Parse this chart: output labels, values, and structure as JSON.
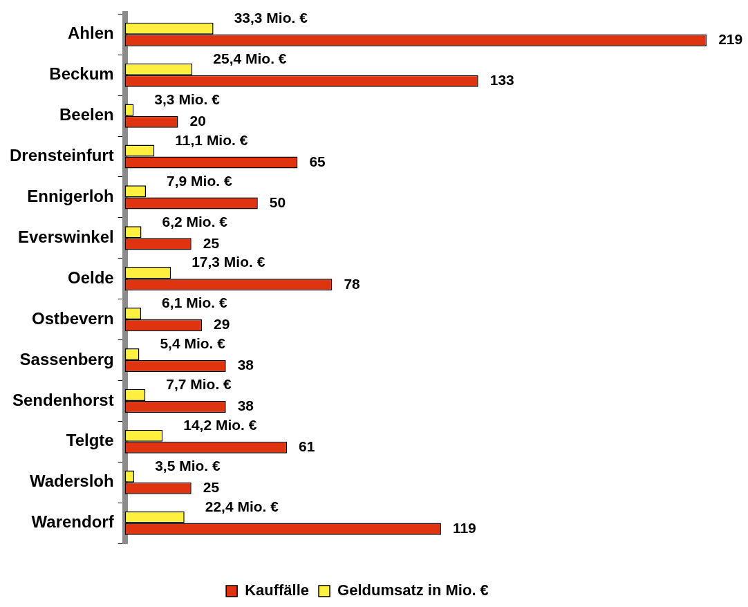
{
  "chart_data": {
    "type": "bar",
    "orientation": "horizontal",
    "categories": [
      "Ahlen",
      "Beckum",
      "Beelen",
      "Drensteinfurt",
      "Ennigerloh",
      "Everswinkel",
      "Oelde",
      "Ostbevern",
      "Sassenberg",
      "Sendenhorst",
      "Telgte",
      "Wadersloh",
      "Warendorf"
    ],
    "series": [
      {
        "name": "Kauffälle",
        "color": "#e03410",
        "values": [
          219,
          133,
          20,
          65,
          50,
          25,
          78,
          29,
          38,
          38,
          61,
          25,
          119
        ],
        "value_labels": [
          "219",
          "133",
          "20",
          "65",
          "50",
          "25",
          "78",
          "29",
          "38",
          "38",
          "61",
          "25",
          "119"
        ]
      },
      {
        "name": "Geldumsatz in Mio. €",
        "color": "#fff040",
        "values": [
          33.3,
          25.4,
          3.3,
          11.1,
          7.9,
          6.2,
          17.3,
          6.1,
          5.4,
          7.7,
          14.2,
          3.5,
          22.4
        ],
        "value_labels": [
          "33,3 Mio. €",
          "25,4 Mio. €",
          "3,3 Mio. €",
          "11,1 Mio. €",
          "7,9 Mio. €",
          "6,2 Mio. €",
          "17,3 Mio. €",
          "6,1 Mio. €",
          "5,4 Mio. €",
          "7,7 Mio. €",
          "14,2 Mio. €",
          "3,5 Mio. €",
          "22,4 Mio. €"
        ]
      }
    ],
    "xlim": [
      0,
      220
    ],
    "tick_labels": "y",
    "legend": "bottom"
  }
}
